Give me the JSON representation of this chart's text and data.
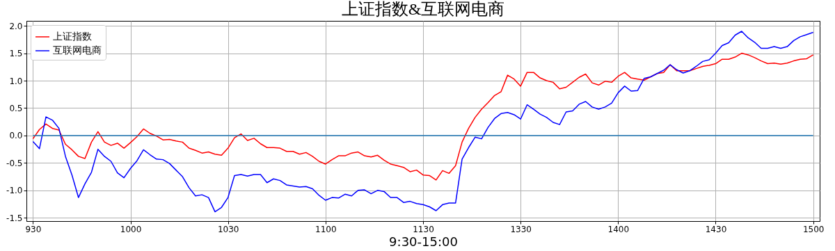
{
  "chart_data": {
    "type": "line",
    "title": "上证指数&互联网电商",
    "xlabel": "9:30-15:00",
    "categories": [
      "930",
      null,
      null,
      null,
      null,
      null,
      null,
      null,
      null,
      null,
      null,
      null,
      null,
      null,
      null,
      "1000",
      null,
      null,
      null,
      null,
      null,
      null,
      null,
      null,
      null,
      null,
      null,
      null,
      null,
      null,
      "1030",
      null,
      null,
      null,
      null,
      null,
      null,
      null,
      null,
      null,
      null,
      null,
      null,
      null,
      null,
      "1100",
      null,
      null,
      null,
      null,
      null,
      null,
      null,
      null,
      null,
      null,
      null,
      null,
      null,
      null,
      "1130",
      null,
      null,
      null,
      null,
      null,
      null,
      null,
      null,
      null,
      null,
      null,
      null,
      null,
      null,
      "1330",
      null,
      null,
      null,
      null,
      null,
      null,
      null,
      null,
      null,
      null,
      null,
      null,
      null,
      null,
      "1400",
      null,
      null,
      null,
      null,
      null,
      null,
      null,
      null,
      null,
      null,
      null,
      null,
      null,
      null,
      "1430",
      null,
      null,
      null,
      null,
      null,
      null,
      null,
      null,
      null,
      null,
      null,
      null,
      null,
      null,
      "1500"
    ],
    "ylim": [
      -1.56,
      2.09
    ],
    "yticks": [
      {
        "value": -1.5,
        "label": "-1.5"
      },
      {
        "value": -1,
        "label": "-1.0"
      },
      {
        "value": -0.5,
        "label": "-0.5"
      },
      {
        "value": 0,
        "label": "0.0"
      },
      {
        "value": 0.5,
        "label": "0.5"
      },
      {
        "value": 1,
        "label": "1.0"
      },
      {
        "value": 1.5,
        "label": "1.5"
      },
      {
        "value": 2,
        "label": "2.0"
      }
    ],
    "grid": true,
    "legend": "top left",
    "series": [
      {
        "name": "上证指数",
        "color": "#ff0000",
        "values": [
          -0.06,
          0.11,
          0.21,
          0.13,
          0.1,
          -0.16,
          -0.26,
          -0.38,
          -0.42,
          -0.12,
          0.07,
          -0.12,
          -0.18,
          -0.14,
          -0.23,
          -0.13,
          -0.02,
          0.12,
          0.04,
          -0.01,
          -0.08,
          -0.07,
          -0.1,
          -0.12,
          -0.23,
          -0.27,
          -0.32,
          -0.3,
          -0.34,
          -0.36,
          -0.23,
          -0.04,
          0.03,
          -0.09,
          -0.05,
          -0.15,
          -0.22,
          -0.22,
          -0.23,
          -0.29,
          -0.29,
          -0.34,
          -0.31,
          -0.38,
          -0.47,
          -0.52,
          -0.44,
          -0.37,
          -0.37,
          -0.32,
          -0.3,
          -0.37,
          -0.39,
          -0.36,
          -0.45,
          -0.52,
          -0.55,
          -0.58,
          -0.66,
          -0.63,
          -0.72,
          -0.73,
          -0.81,
          -0.64,
          -0.69,
          -0.55,
          -0.12,
          0.13,
          0.33,
          0.48,
          0.6,
          0.73,
          0.8,
          1.1,
          1.03,
          0.9,
          1.15,
          1.15,
          1.05,
          1,
          0.97,
          0.85,
          0.88,
          0.97,
          1.06,
          1.12,
          0.96,
          0.92,
          0.99,
          0.97,
          1.08,
          1.15,
          1.05,
          1.03,
          1.01,
          1.07,
          1.13,
          1.15,
          1.29,
          1.18,
          1.18,
          1.18,
          1.22,
          1.26,
          1.28,
          1.31,
          1.39,
          1.39,
          1.43,
          1.5,
          1.47,
          1.42,
          1.36,
          1.31,
          1.32,
          1.3,
          1.32,
          1.36,
          1.39,
          1.4,
          1.47
        ]
      },
      {
        "name": "互联网电商",
        "color": "#0000ff",
        "values": [
          -0.11,
          -0.24,
          0.34,
          0.28,
          0.13,
          -0.38,
          -0.72,
          -1.13,
          -0.88,
          -0.67,
          -0.25,
          -0.38,
          -0.47,
          -0.68,
          -0.77,
          -0.6,
          -0.46,
          -0.26,
          -0.35,
          -0.43,
          -0.44,
          -0.51,
          -0.63,
          -0.75,
          -0.95,
          -1.1,
          -1.08,
          -1.13,
          -1.39,
          -1.31,
          -1.13,
          -0.73,
          -0.71,
          -0.74,
          -0.71,
          -0.71,
          -0.86,
          -0.79,
          -0.82,
          -0.9,
          -0.92,
          -0.94,
          -0.93,
          -0.97,
          -1.09,
          -1.18,
          -1.13,
          -1.14,
          -1.07,
          -1.1,
          -1,
          -0.99,
          -1.06,
          -1,
          -1.02,
          -1.13,
          -1.13,
          -1.22,
          -1.2,
          -1.24,
          -1.26,
          -1.3,
          -1.37,
          -1.26,
          -1.23,
          -1.23,
          -0.43,
          -0.22,
          -0.03,
          -0.06,
          0.15,
          0.31,
          0.4,
          0.42,
          0.38,
          0.3,
          0.56,
          0.48,
          0.39,
          0.33,
          0.24,
          0.2,
          0.43,
          0.45,
          0.57,
          0.62,
          0.52,
          0.48,
          0.52,
          0.59,
          0.78,
          0.9,
          0.81,
          0.82,
          1.04,
          1.07,
          1.13,
          1.19,
          1.29,
          1.2,
          1.14,
          1.18,
          1.26,
          1.35,
          1.38,
          1.5,
          1.64,
          1.69,
          1.83,
          1.9,
          1.78,
          1.7,
          1.59,
          1.59,
          1.62,
          1.59,
          1.62,
          1.73,
          1.8,
          1.84,
          1.88
        ]
      },
      {
        "color": "#1f77b4",
        "values": [
          0,
          0,
          0,
          0,
          0,
          0,
          0,
          0,
          0,
          0,
          0,
          0,
          0,
          0,
          0,
          0,
          0,
          0,
          0,
          0,
          0,
          0,
          0,
          0,
          0,
          0,
          0,
          0,
          0,
          0,
          0,
          0,
          0,
          0,
          0,
          0,
          0,
          0,
          0,
          0,
          0,
          0,
          0,
          0,
          0,
          0,
          0,
          0,
          0,
          0,
          0,
          0,
          0,
          0,
          0,
          0,
          0,
          0,
          0,
          0,
          0,
          0,
          0,
          0,
          0,
          0,
          0,
          0,
          0,
          0,
          0,
          0,
          0,
          0,
          0,
          0,
          0,
          0,
          0,
          0,
          0,
          0,
          0,
          0,
          0,
          0,
          0,
          0,
          0,
          0,
          0,
          0,
          0,
          0,
          0,
          0,
          0,
          0,
          0,
          0,
          0,
          0,
          0,
          0,
          0,
          0,
          0,
          0,
          0,
          0,
          0,
          0,
          0,
          0,
          0,
          0,
          0,
          0,
          0,
          0,
          0
        ]
      }
    ]
  }
}
